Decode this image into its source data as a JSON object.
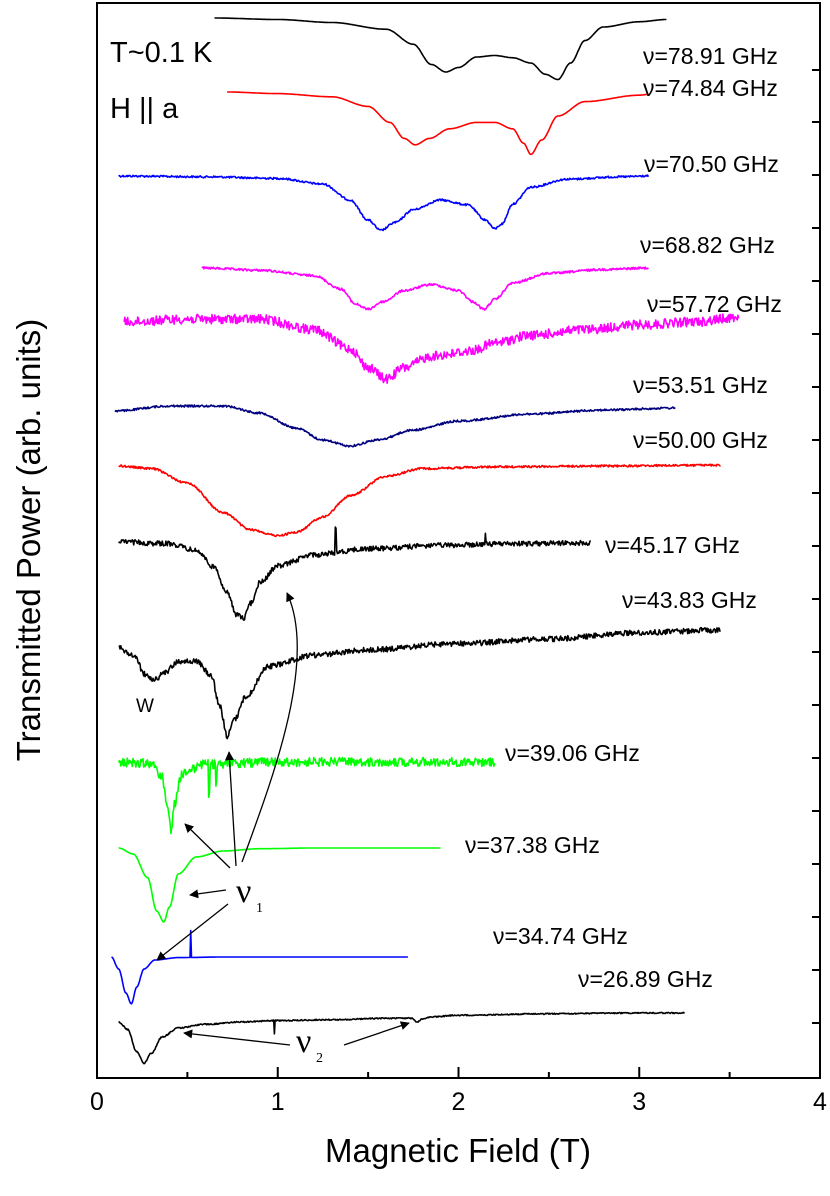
{
  "chart_data": {
    "type": "line",
    "title": "",
    "xlabel": "Magnetic Field (T)",
    "ylabel": "Transmitted Power (arb. units)",
    "xlim": [
      0,
      4
    ],
    "xticks": [
      "0",
      "1",
      "2",
      "3",
      "4"
    ],
    "conditions": [
      "T~0.1 K",
      "H || a"
    ],
    "series": [
      {
        "name": "ν=78.91 GHz",
        "label": "ν=78.91 GHz",
        "color": "#000000",
        "x": [
          0.65,
          1.0,
          1.3,
          1.6,
          1.75,
          1.85,
          1.93,
          2.0,
          2.1,
          2.2,
          2.3,
          2.4,
          2.48,
          2.55,
          2.62,
          2.7,
          2.8,
          3.0,
          3.15
        ],
        "y": [
          0,
          0.02,
          0.06,
          0.15,
          0.35,
          0.62,
          0.72,
          0.66,
          0.52,
          0.5,
          0.53,
          0.6,
          0.75,
          0.82,
          0.6,
          0.3,
          0.12,
          0.05,
          0.02
        ]
      },
      {
        "name": "ν=74.84 GHz",
        "label": "ν=74.84 GHz",
        "color": "#ff0000",
        "x": [
          0.72,
          1.0,
          1.3,
          1.5,
          1.62,
          1.7,
          1.76,
          1.84,
          1.95,
          2.1,
          2.2,
          2.3,
          2.36,
          2.4,
          2.46,
          2.55,
          2.7,
          3.0,
          3.05
        ],
        "y": [
          0,
          0.02,
          0.06,
          0.18,
          0.38,
          0.58,
          0.66,
          0.58,
          0.46,
          0.38,
          0.38,
          0.46,
          0.64,
          0.78,
          0.6,
          0.3,
          0.12,
          0.04,
          0.03
        ]
      },
      {
        "name": "ν=70.50 GHz",
        "label": "ν=70.50 GHz",
        "color": "#0000ff",
        "x": [
          0.12,
          0.6,
          1.0,
          1.25,
          1.4,
          1.5,
          1.57,
          1.65,
          1.75,
          1.9,
          2.05,
          2.15,
          2.2,
          2.24,
          2.3,
          2.4,
          2.6,
          2.9,
          3.05
        ],
        "y": [
          0,
          0.01,
          0.03,
          0.1,
          0.3,
          0.55,
          0.68,
          0.58,
          0.42,
          0.3,
          0.36,
          0.55,
          0.66,
          0.6,
          0.35,
          0.14,
          0.04,
          0.01,
          0
        ],
        "noise": 0.012
      },
      {
        "name": "ν=68.82 GHz",
        "label": "ν=68.82 GHz",
        "color": "#ff00ff",
        "x": [
          0.58,
          0.9,
          1.2,
          1.35,
          1.43,
          1.5,
          1.58,
          1.7,
          1.85,
          2.0,
          2.08,
          2.14,
          2.2,
          2.3,
          2.5,
          2.8,
          3.05
        ],
        "y": [
          0,
          0.03,
          0.1,
          0.28,
          0.48,
          0.55,
          0.45,
          0.3,
          0.22,
          0.3,
          0.45,
          0.55,
          0.42,
          0.2,
          0.07,
          0.02,
          0
        ],
        "noise": 0.015
      },
      {
        "name": "ν=57.72 GHz",
        "label": "ν=57.72 GHz",
        "color": "#ff00ff",
        "x": [
          0.15,
          0.5,
          0.9,
          1.2,
          1.4,
          1.5,
          1.6,
          1.7,
          1.85,
          1.95,
          2.0,
          2.08,
          2.2,
          2.4,
          2.7,
          3.0,
          3.3,
          3.55
        ],
        "y": [
          0,
          -0.03,
          -0.03,
          0.08,
          0.28,
          0.48,
          0.6,
          0.48,
          0.36,
          0.34,
          0.32,
          0.3,
          0.22,
          0.14,
          0.08,
          0.03,
          0,
          -0.05
        ],
        "noise": 0.05
      },
      {
        "name": "ν=53.51 GHz",
        "label": "ν=53.51 GHz",
        "color": "#00007f",
        "x": [
          0.1,
          0.4,
          0.7,
          0.9,
          1.1,
          1.25,
          1.4,
          1.55,
          1.75,
          2.0,
          2.4,
          2.8,
          3.2
        ],
        "y": [
          0.03,
          -0.02,
          -0.02,
          0.05,
          0.2,
          0.32,
          0.38,
          0.32,
          0.22,
          0.13,
          0.06,
          0.02,
          0
        ],
        "noise": 0.01
      },
      {
        "name": "ν=50.00 GHz",
        "label": "ν=50.00 GHz",
        "color": "#ff0000",
        "x": [
          0.12,
          0.3,
          0.5,
          0.7,
          0.85,
          1.0,
          1.1,
          1.25,
          1.4,
          1.6,
          1.8,
          2.2,
          2.8,
          3.45
        ],
        "y": [
          0,
          0.03,
          0.2,
          0.55,
          0.75,
          0.82,
          0.78,
          0.6,
          0.35,
          0.12,
          0.03,
          0.01,
          0,
          -0.01
        ],
        "noise": 0.012
      },
      {
        "name": "ν=45.17 GHz",
        "label": "ν=45.17 GHz",
        "color": "#000000",
        "x": [
          0.12,
          0.4,
          0.55,
          0.65,
          0.72,
          0.77,
          0.81,
          0.85,
          0.9,
          1.0,
          1.2,
          1.5,
          1.9,
          2.3,
          2.73
        ],
        "y": [
          0,
          0.02,
          0.1,
          0.3,
          0.6,
          0.85,
          0.9,
          0.72,
          0.48,
          0.28,
          0.15,
          0.08,
          0.04,
          0.02,
          0.01
        ],
        "noise": 0.03,
        "spikes": [
          [
            1.32,
            -0.3
          ],
          [
            2.15,
            -0.1
          ]
        ]
      },
      {
        "name": "ν=43.83 GHz",
        "label": "ν=43.83 GHz",
        "color": "#000000",
        "x": [
          0.12,
          0.2,
          0.27,
          0.32,
          0.37,
          0.45,
          0.55,
          0.63,
          0.68,
          0.72,
          0.76,
          0.82,
          0.95,
          1.2,
          1.5,
          2.0,
          2.5,
          3.0,
          3.45
        ],
        "y": [
          0,
          0.08,
          0.3,
          0.35,
          0.28,
          0.15,
          0.15,
          0.3,
          0.65,
          0.98,
          0.8,
          0.55,
          0.2,
          0.08,
          0.02,
          -0.05,
          -0.1,
          -0.17,
          -0.2
        ],
        "noise": 0.03
      },
      {
        "name": "ν=39.06 GHz",
        "label": "ν=39.06 GHz",
        "color": "#00ff00",
        "x": [
          0.12,
          0.3,
          0.36,
          0.39,
          0.41,
          0.43,
          0.47,
          0.6,
          1.0,
          1.5,
          2.0,
          2.2
        ],
        "y": [
          0,
          0.02,
          0.2,
          0.6,
          0.9,
          0.55,
          0.15,
          0.03,
          0,
          0,
          0,
          0
        ],
        "noise": 0.06,
        "spikes": [
          [
            0.62,
            0.4
          ],
          [
            0.66,
            0.25
          ]
        ]
      },
      {
        "name": "ν=37.38 GHz",
        "label": "ν=37.38 GHz",
        "color": "#00ff00",
        "x": [
          0.12,
          0.2,
          0.28,
          0.33,
          0.37,
          0.4,
          0.45,
          0.55,
          0.7,
          0.9,
          1.2,
          1.5,
          1.9
        ],
        "y": [
          0,
          0.08,
          0.4,
          0.85,
          1.0,
          0.8,
          0.35,
          0.12,
          0.04,
          0.01,
          0,
          0,
          0
        ]
      },
      {
        "name": "ν=34.74 GHz",
        "label": "ν=34.74 GHz",
        "color": "#0000ff",
        "x": [
          0.08,
          0.12,
          0.16,
          0.19,
          0.22,
          0.26,
          0.32,
          0.45,
          0.7,
          1.0,
          1.4,
          1.72
        ],
        "y": [
          0,
          0.2,
          0.6,
          0.78,
          0.5,
          0.2,
          0.05,
          0.01,
          0,
          0,
          0,
          0
        ],
        "spikes": [
          [
            0.52,
            -0.45
          ]
        ]
      },
      {
        "name": "ν=26.89 GHz",
        "label": "ν=26.89 GHz",
        "color": "#000000",
        "x": [
          0.12,
          0.17,
          0.22,
          0.26,
          0.3,
          0.36,
          0.45,
          0.6,
          0.8,
          1.0,
          1.3,
          1.6,
          1.74,
          1.77,
          1.8,
          1.85,
          2.0,
          2.5,
          3.0,
          3.25
        ],
        "y": [
          0,
          0.1,
          0.4,
          0.55,
          0.42,
          0.2,
          0.08,
          0.03,
          0,
          -0.02,
          -0.03,
          -0.05,
          -0.05,
          0.0,
          -0.04,
          -0.07,
          -0.09,
          -0.11,
          -0.12,
          -0.12
        ],
        "noise": 0.008,
        "spikes": [
          [
            0.98,
            0.18
          ]
        ]
      }
    ],
    "annotations": [
      {
        "text": "ν",
        "subscript": "1"
      },
      {
        "text": "ν",
        "subscript": "2"
      },
      {
        "text": "W"
      }
    ]
  }
}
